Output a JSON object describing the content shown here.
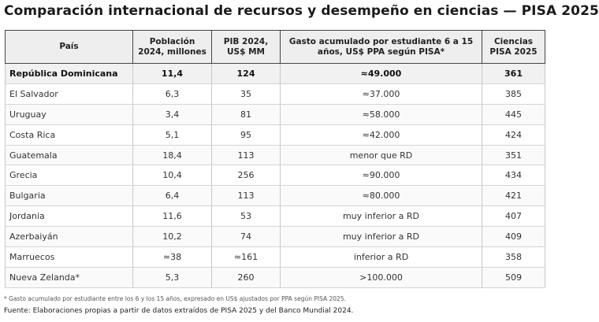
{
  "title": "Comparación internacional de recursos y desempeño en ciencias — PISA 2025",
  "table": {
    "headers": [
      "País",
      "Población 2024, millones",
      "PIB 2024, US$ MM",
      "Gasto acumulado por estudiante 6 a 15 años, US$ PPA según PISA*",
      "Ciencias PISA 2025"
    ],
    "rows": [
      [
        "República Dominicana",
        "11,4",
        "124",
        "≈49.000",
        "361"
      ],
      [
        "El Salvador",
        "6,3",
        "35",
        "≈37.000",
        "385"
      ],
      [
        "Uruguay",
        "3,4",
        "81",
        "≈58.000",
        "445"
      ],
      [
        "Costa Rica",
        "5,1",
        "95",
        "≈42.000",
        "424"
      ],
      [
        "Guatemala",
        "18,4",
        "113",
        "menor que RD",
        "351"
      ],
      [
        "Grecia",
        "10,4",
        "256",
        "≈90.000",
        "434"
      ],
      [
        "Bulgaria",
        "6,4",
        "113",
        "≈80.000",
        "421"
      ],
      [
        "Jordania",
        "11,6",
        "53",
        "muy inferior a RD",
        "407"
      ],
      [
        "Azerbaiyán",
        "10,2",
        "74",
        "muy inferior a RD",
        "409"
      ],
      [
        "Marruecos",
        "≈38",
        "≈161",
        "inferior a RD",
        "358"
      ],
      [
        "Nueva Zelanda*",
        "5,3",
        "260",
        ">100.000",
        "509"
      ]
    ]
  },
  "footnote": "* Gasto acumulado por estudiante entre los 6 y los 15 años, expresado en US$ ajustados por PPA según PISA 2025.",
  "source": "Fuente: Elaboraciones propias a partir de datos extraídos de PISA 2025 y del Banco Mundial 2024."
}
